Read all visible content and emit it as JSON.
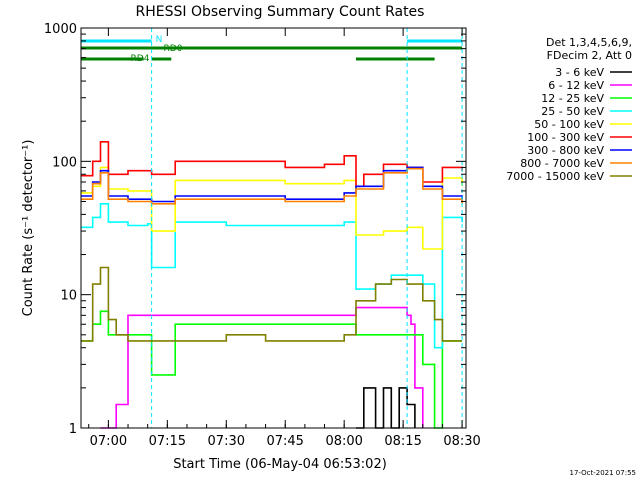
{
  "chart_data": {
    "type": "line",
    "title": "RHESSI Observing Summary Count Rates",
    "ylabel": "Count Rate (s⁻¹ detector⁻¹)",
    "xlabel": "Start Time (06-May-04 06:53:02)",
    "yscale": "log",
    "ylim": [
      1,
      1000
    ],
    "xlim": [
      "06:53:02",
      "08:31:00"
    ],
    "x_ticks": [
      "07:00",
      "07:15",
      "07:30",
      "07:45",
      "08:00",
      "08:15",
      "08:30"
    ],
    "y_ticks": [
      "1",
      "10",
      "100",
      "1000"
    ],
    "grid": false,
    "legend_position": "right",
    "legend_header": [
      "Det 1,3,4,5,6,9,",
      "FDecim 2, Att 0"
    ],
    "footer_date": "17-Oct-2021 07:55",
    "flags": {
      "N_label": "N",
      "RD0_label": "RD0",
      "RD4_label": "RD4",
      "N_segments": [
        [
          "06:53:02",
          "07:11"
        ],
        [
          "08:16",
          "08:30"
        ]
      ],
      "RD0_segments": [
        [
          "06:53:02",
          "07:16"
        ],
        [
          "07:16",
          "08:03"
        ],
        [
          "08:03",
          "08:30"
        ]
      ],
      "RD4_segments": [
        [
          "06:53:02",
          "07:09"
        ],
        [
          "07:11",
          "07:16"
        ],
        [
          "08:03",
          "08:23"
        ]
      ]
    },
    "night_markers": [
      "07:11",
      "08:16",
      "08:30"
    ],
    "series": [
      {
        "name": "3 - 6 keV",
        "color": "#000000",
        "x": [
          "08:03",
          "08:05",
          "08:08",
          "08:10",
          "08:12",
          "08:14",
          "08:16",
          "08:18"
        ],
        "values": [
          1.0,
          2.0,
          1.0,
          2.0,
          1.0,
          2.0,
          1.5,
          1.0
        ]
      },
      {
        "name": "6 - 12 keV",
        "color": "#ff00ff",
        "x": [
          "06:58",
          "07:02",
          "07:05",
          "07:10",
          "07:20",
          "07:30",
          "07:45",
          "07:55",
          "08:03",
          "08:10",
          "08:16",
          "08:17",
          "08:18",
          "08:20"
        ],
        "values": [
          1.0,
          1.5,
          7,
          7,
          7,
          7,
          7,
          7,
          8,
          8,
          7,
          6,
          2,
          1
        ]
      },
      {
        "name": "12 - 25 keV",
        "color": "#00ff00",
        "x": [
          "06:53:02",
          "06:56",
          "06:58",
          "07:00",
          "07:05",
          "07:10",
          "07:11",
          "07:16",
          "07:17",
          "07:30",
          "07:45",
          "08:00",
          "08:03",
          "08:06",
          "08:10",
          "08:15",
          "08:17",
          "08:20",
          "08:23",
          "08:25",
          "08:30"
        ],
        "values": [
          4.5,
          6.0,
          7.5,
          5.0,
          5.0,
          5.0,
          2.5,
          2.5,
          6.0,
          6.0,
          6.0,
          6.0,
          5.0,
          5.0,
          5.0,
          5.0,
          5.0,
          3.0,
          1.0,
          4.5,
          4.5
        ]
      },
      {
        "name": "25 - 50 keV",
        "color": "#00ffff",
        "x": [
          "06:53:02",
          "06:56",
          "06:58",
          "07:00",
          "07:05",
          "07:10",
          "07:11",
          "07:16",
          "07:17",
          "07:30",
          "07:45",
          "08:00",
          "08:03",
          "08:08",
          "08:12",
          "08:16",
          "08:20",
          "08:23",
          "08:25",
          "08:30"
        ],
        "values": [
          32,
          38,
          48,
          35,
          33,
          34,
          16,
          16,
          35,
          33,
          33,
          35,
          11,
          12,
          14,
          14,
          12,
          4.0,
          38,
          35
        ]
      },
      {
        "name": "50 - 100 keV",
        "color": "#ffff00",
        "x": [
          "06:53:02",
          "06:56",
          "06:58",
          "07:00",
          "07:05",
          "07:10",
          "07:11",
          "07:16",
          "07:17",
          "07:30",
          "07:45",
          "08:00",
          "08:03",
          "08:10",
          "08:16",
          "08:20",
          "08:23",
          "08:25",
          "08:30"
        ],
        "values": [
          58,
          65,
          90,
          62,
          60,
          60,
          30,
          30,
          72,
          72,
          68,
          72,
          28,
          30,
          32,
          22,
          22,
          75,
          65
        ]
      },
      {
        "name": "100 - 300 keV",
        "color": "#ff0000",
        "x": [
          "06:53:02",
          "06:56",
          "06:58",
          "07:00",
          "07:05",
          "07:10",
          "07:11",
          "07:16",
          "07:17",
          "07:30",
          "07:45",
          "07:55",
          "08:00",
          "08:03",
          "08:05",
          "08:10",
          "08:16",
          "08:20",
          "08:23",
          "08:25",
          "08:30"
        ],
        "values": [
          78,
          100,
          140,
          80,
          85,
          85,
          80,
          80,
          100,
          100,
          90,
          95,
          110,
          65,
          80,
          95,
          90,
          70,
          70,
          90,
          85
        ]
      },
      {
        "name": "300 - 800 keV",
        "color": "#0000ff",
        "x": [
          "06:53:02",
          "06:56",
          "06:58",
          "07:00",
          "07:05",
          "07:10",
          "07:11",
          "07:16",
          "07:17",
          "07:30",
          "07:45",
          "08:00",
          "08:03",
          "08:10",
          "08:16",
          "08:20",
          "08:23",
          "08:25",
          "08:30"
        ],
        "values": [
          55,
          70,
          85,
          55,
          52,
          52,
          50,
          50,
          55,
          55,
          52,
          58,
          65,
          85,
          90,
          65,
          65,
          55,
          50
        ]
      },
      {
        "name": "800 - 7000 keV",
        "color": "#ff8000",
        "x": [
          "06:53:02",
          "06:56",
          "06:58",
          "07:00",
          "07:05",
          "07:10",
          "07:11",
          "07:16",
          "07:17",
          "07:30",
          "07:45",
          "08:00",
          "08:03",
          "08:10",
          "08:16",
          "08:20",
          "08:23",
          "08:25",
          "08:30"
        ],
        "values": [
          52,
          68,
          82,
          52,
          50,
          50,
          48,
          48,
          52,
          52,
          50,
          55,
          62,
          82,
          88,
          62,
          62,
          52,
          48
        ]
      },
      {
        "name": "7000 - 15000 keV",
        "color": "#808000",
        "x": [
          "06:53:02",
          "06:56",
          "06:58",
          "07:00",
          "07:02",
          "07:05",
          "07:10",
          "07:16",
          "07:20",
          "07:30",
          "07:40",
          "07:45",
          "07:55",
          "08:00",
          "08:03",
          "08:08",
          "08:12",
          "08:16",
          "08:20",
          "08:23",
          "08:25",
          "08:30"
        ],
        "values": [
          4.5,
          12,
          16,
          6.5,
          5.0,
          4.5,
          4.5,
          4.5,
          4.5,
          5.0,
          4.5,
          4.5,
          4.5,
          5.0,
          9.0,
          12,
          13,
          12,
          9.0,
          6.5,
          4.5,
          4.5
        ]
      }
    ]
  }
}
